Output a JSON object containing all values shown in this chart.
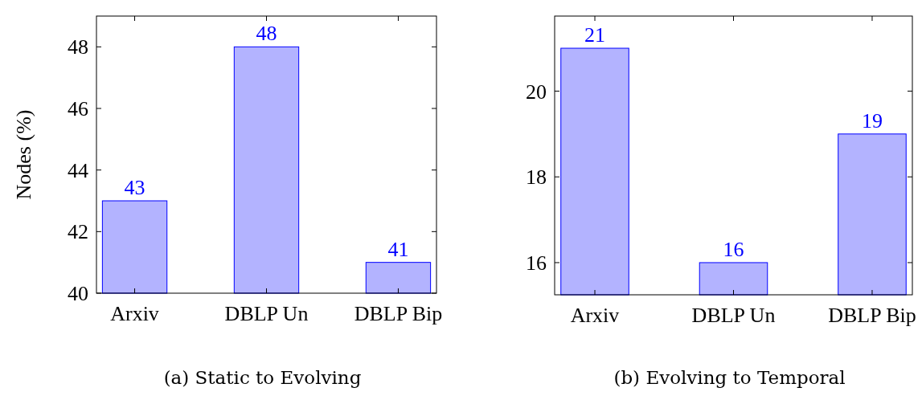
{
  "chart_data": [
    {
      "type": "bar",
      "title": "(a) Static to Evolving",
      "ylabel": "Nodes (%)",
      "categories": [
        "Arxiv",
        "DBLP Un",
        "DBLP Bip"
      ],
      "values": [
        43,
        48,
        41
      ],
      "color": "#b3b3ff",
      "ylim": [
        40,
        49
      ],
      "yticks": [
        40,
        42,
        44,
        46,
        48
      ],
      "data_labels": true,
      "grid": false
    },
    {
      "type": "bar",
      "title": "(b) Evolving to Temporal",
      "categories": [
        "Arxiv",
        "DBLP Un",
        "DBLP Bip"
      ],
      "values": [
        21,
        16,
        19
      ],
      "color": "#b3b3ff",
      "ylim": [
        15.25,
        21.75
      ],
      "yticks": [
        16,
        18,
        20
      ],
      "data_labels": true,
      "grid": false
    }
  ]
}
